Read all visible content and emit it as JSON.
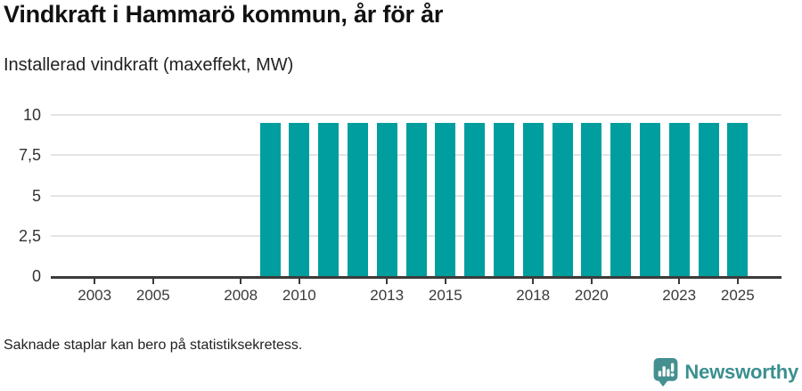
{
  "header": {
    "title": "Vindkraft i Hammarö kommun, år för år",
    "subtitle": "Installerad vindkraft (maxeffekt, MW)"
  },
  "footer": {
    "note": "Saknade staplar kan bero på statistiksekretess.",
    "brand": "Newsworthy"
  },
  "colors": {
    "bar": "#009e9e",
    "axis": "#3b3b3b",
    "grid": "#e4e4e4",
    "tick_text": "#3a3a3a",
    "brand_text": "#3a8f90",
    "brand_icon": "#449090"
  },
  "chart_data": {
    "type": "bar",
    "title": "Vindkraft i Hammarö kommun, år för år",
    "ylabel": "Installerad vindkraft (maxeffekt, MW)",
    "unit": "MW",
    "x_domain_years": [
      2002,
      2026
    ],
    "categories": [
      2002,
      2003,
      2004,
      2005,
      2006,
      2007,
      2008,
      2009,
      2010,
      2011,
      2012,
      2013,
      2014,
      2015,
      2016,
      2017,
      2018,
      2019,
      2020,
      2021,
      2022,
      2023,
      2024,
      2025
    ],
    "values": [
      null,
      null,
      null,
      null,
      null,
      null,
      null,
      9.5,
      9.5,
      9.5,
      9.5,
      9.5,
      9.5,
      9.5,
      9.5,
      9.5,
      9.5,
      9.5,
      9.5,
      9.5,
      9.5,
      9.5,
      9.5,
      9.5
    ],
    "ylim": [
      0,
      10
    ],
    "yticks": [
      0,
      2.5,
      5,
      7.5,
      10
    ],
    "ytick_labels": [
      "0",
      "2,5",
      "5",
      "7,5",
      "10"
    ],
    "xticks": [
      2003,
      2005,
      2008,
      2010,
      2013,
      2015,
      2018,
      2020,
      2023,
      2025
    ],
    "grid": true,
    "legend": null,
    "note": "Saknade staplar kan bero på statistiksekretess."
  }
}
